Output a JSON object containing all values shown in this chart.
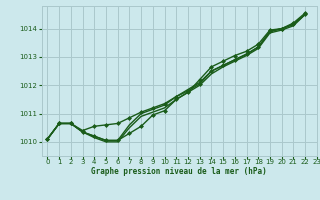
{
  "bg_color": "#cce8ec",
  "grid_color": "#aac8cc",
  "line_color": "#1a5c1a",
  "marker_color": "#1a5c1a",
  "title": "Graphe pression niveau de la mer (hPa)",
  "title_color": "#1a5c1a",
  "xlim": [
    -0.5,
    23
  ],
  "ylim": [
    1009.5,
    1014.8
  ],
  "yticks": [
    1010,
    1011,
    1012,
    1013,
    1014
  ],
  "xticks": [
    0,
    1,
    2,
    3,
    4,
    5,
    6,
    7,
    8,
    9,
    10,
    11,
    12,
    13,
    14,
    15,
    16,
    17,
    18,
    19,
    20,
    21,
    22,
    23
  ],
  "series": [
    {
      "x": [
        0,
        1,
        2,
        3,
        4,
        5,
        6,
        7,
        8,
        9,
        10,
        11,
        12,
        13,
        14,
        15,
        16,
        17,
        18,
        19,
        20,
        21,
        22
      ],
      "y": [
        1010.1,
        1010.65,
        1010.65,
        1010.35,
        1010.2,
        1010.05,
        1010.05,
        1010.3,
        1010.55,
        1010.95,
        1011.1,
        1011.5,
        1011.75,
        1012.2,
        1012.65,
        1012.85,
        1013.05,
        1013.2,
        1013.45,
        1013.95,
        1014.0,
        1014.2,
        1014.55
      ],
      "lw": 1.0,
      "marker": "D",
      "ms": 2.0
    },
    {
      "x": [
        0,
        1,
        2,
        3,
        4,
        5,
        6,
        7,
        8,
        9,
        10,
        11,
        12,
        13,
        14,
        15,
        16,
        17,
        18,
        19,
        20,
        21,
        22
      ],
      "y": [
        1010.1,
        1010.65,
        1010.65,
        1010.35,
        1010.15,
        1010.0,
        1010.0,
        1010.5,
        1010.9,
        1011.05,
        1011.2,
        1011.5,
        1011.75,
        1012.0,
        1012.4,
        1012.65,
        1012.85,
        1013.05,
        1013.3,
        1013.85,
        1013.95,
        1014.1,
        1014.5
      ],
      "lw": 1.0,
      "marker": null,
      "ms": 0
    },
    {
      "x": [
        0,
        1,
        2,
        3,
        4,
        5,
        6,
        7,
        8,
        9,
        10,
        11,
        12,
        13,
        14,
        15,
        16,
        17,
        18,
        19,
        20,
        21,
        22
      ],
      "y": [
        1010.1,
        1010.65,
        1010.65,
        1010.35,
        1010.2,
        1010.05,
        1010.05,
        1010.6,
        1011.0,
        1011.15,
        1011.3,
        1011.6,
        1011.85,
        1012.1,
        1012.5,
        1012.7,
        1012.9,
        1013.1,
        1013.35,
        1013.9,
        1014.0,
        1014.15,
        1014.5
      ],
      "lw": 1.0,
      "marker": null,
      "ms": 0
    },
    {
      "x": [
        0,
        1,
        2,
        3,
        4,
        5,
        6,
        7,
        8,
        9,
        10,
        11,
        12,
        13,
        14,
        15,
        16,
        17,
        18,
        19,
        20,
        21,
        22
      ],
      "y": [
        1010.1,
        1010.65,
        1010.65,
        1010.4,
        1010.55,
        1010.6,
        1010.65,
        1010.85,
        1011.05,
        1011.2,
        1011.35,
        1011.6,
        1011.8,
        1012.05,
        1012.5,
        1012.7,
        1012.9,
        1013.1,
        1013.35,
        1013.9,
        1014.0,
        1014.15,
        1014.5
      ],
      "lw": 1.0,
      "marker": "D",
      "ms": 2.0
    }
  ]
}
